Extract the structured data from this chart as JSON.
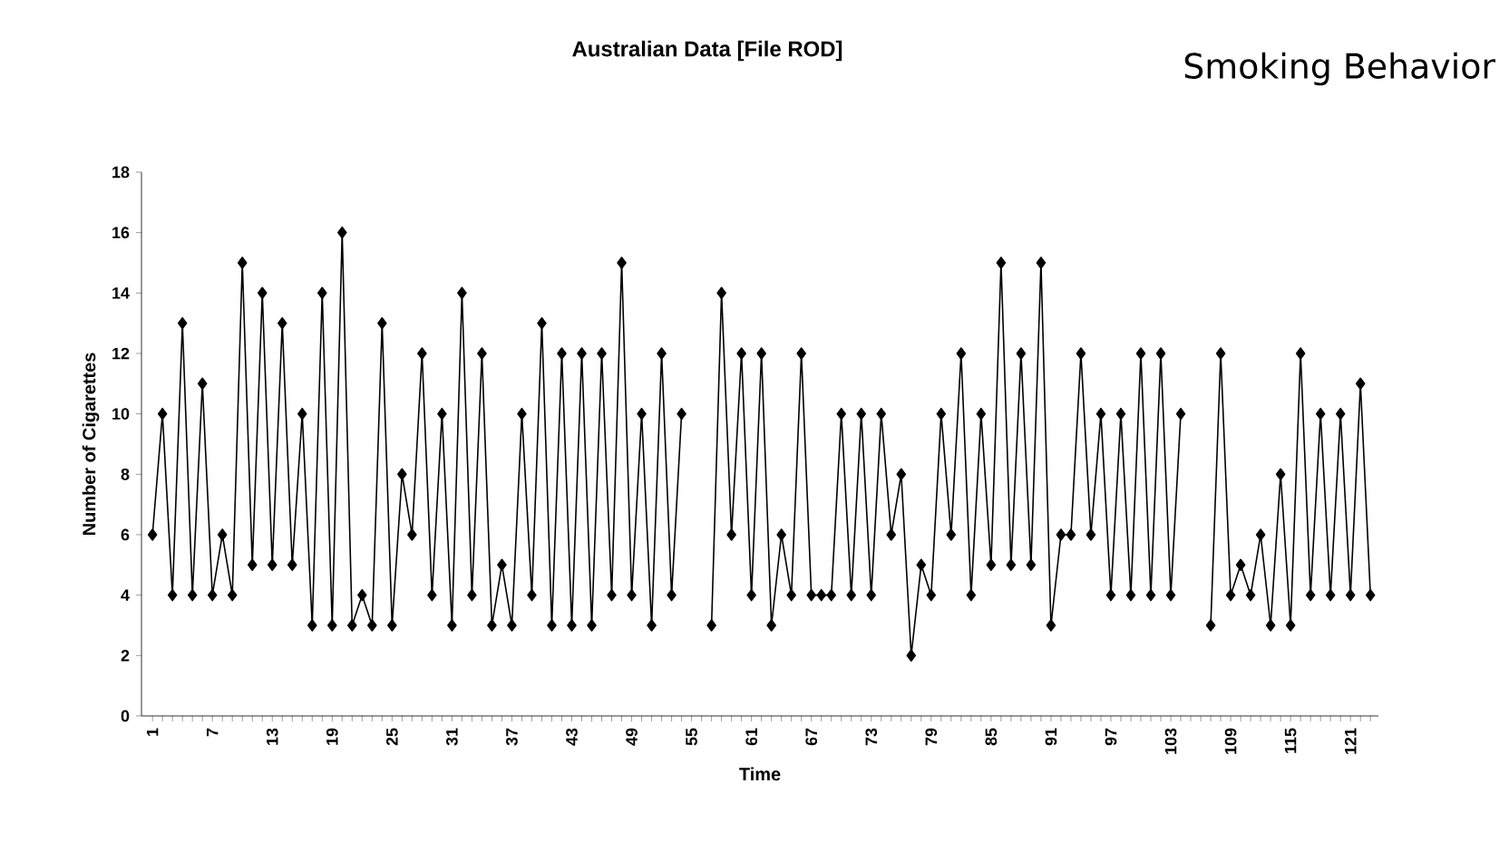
{
  "chart_data": {
    "type": "line",
    "title": "Australian Data [File ROD]",
    "subtitle": "Smoking Behavior",
    "xlabel": "Time",
    "ylabel": "Number of Cigarettes",
    "categories": [
      "1",
      null,
      null,
      null,
      null,
      null,
      "7",
      null,
      null,
      null,
      null,
      null,
      "13",
      null,
      null,
      null,
      null,
      null,
      "19",
      null,
      null,
      null,
      null,
      null,
      "25",
      null,
      null,
      null,
      null,
      null,
      "31",
      null,
      null,
      null,
      null,
      null,
      "37",
      null,
      null,
      null,
      null,
      null,
      "43",
      null,
      null,
      null,
      null,
      null,
      "49",
      null,
      null,
      null,
      null,
      null,
      "55",
      null,
      null,
      null,
      null,
      null,
      "61",
      null,
      null,
      null,
      null,
      null,
      "67",
      null,
      null,
      null,
      null,
      null,
      "73",
      null,
      null,
      null,
      null,
      null,
      "79",
      null,
      null,
      null,
      null,
      null,
      "85",
      null,
      null,
      null,
      null,
      null,
      "91",
      null,
      null,
      null,
      null,
      null,
      "97",
      null,
      null,
      null,
      null,
      null,
      "103",
      null,
      null,
      null,
      null,
      null,
      "109",
      null,
      null,
      null,
      null,
      null,
      "115",
      null,
      null,
      null,
      null,
      null,
      "121",
      null,
      null
    ],
    "series": [
      {
        "color": "#000000",
        "values": [
          6,
          10,
          4,
          13,
          4,
          11,
          4,
          6,
          4,
          15,
          5,
          14,
          5,
          13,
          5,
          10,
          3,
          14,
          3,
          16,
          3,
          4,
          3,
          13,
          3,
          8,
          6,
          12,
          4,
          10,
          3,
          14,
          4,
          12,
          3,
          5,
          3,
          10,
          4,
          13,
          3,
          12,
          3,
          12,
          3,
          12,
          4,
          15,
          4,
          10,
          3,
          12,
          4,
          10,
          null,
          null,
          3,
          14,
          6,
          12,
          4,
          12,
          3,
          6,
          4,
          12,
          4,
          4,
          4,
          10,
          4,
          10,
          4,
          10,
          6,
          8,
          2,
          5,
          4,
          10,
          6,
          12,
          4,
          10,
          5,
          15,
          5,
          12,
          5,
          15,
          3,
          6,
          6,
          12,
          6,
          10,
          4,
          10,
          4,
          12,
          4,
          12,
          4,
          10,
          null,
          null,
          3,
          12,
          4,
          5,
          4,
          6,
          3,
          8,
          3,
          12,
          4,
          10,
          4,
          10,
          4,
          11,
          4
        ]
      }
    ],
    "ylim": [
      0,
      18
    ],
    "yticks": [
      0,
      2,
      4,
      6,
      8,
      10,
      12,
      14,
      16,
      18
    ],
    "grid": false,
    "marker": "diamond",
    "line_style": "solid"
  }
}
